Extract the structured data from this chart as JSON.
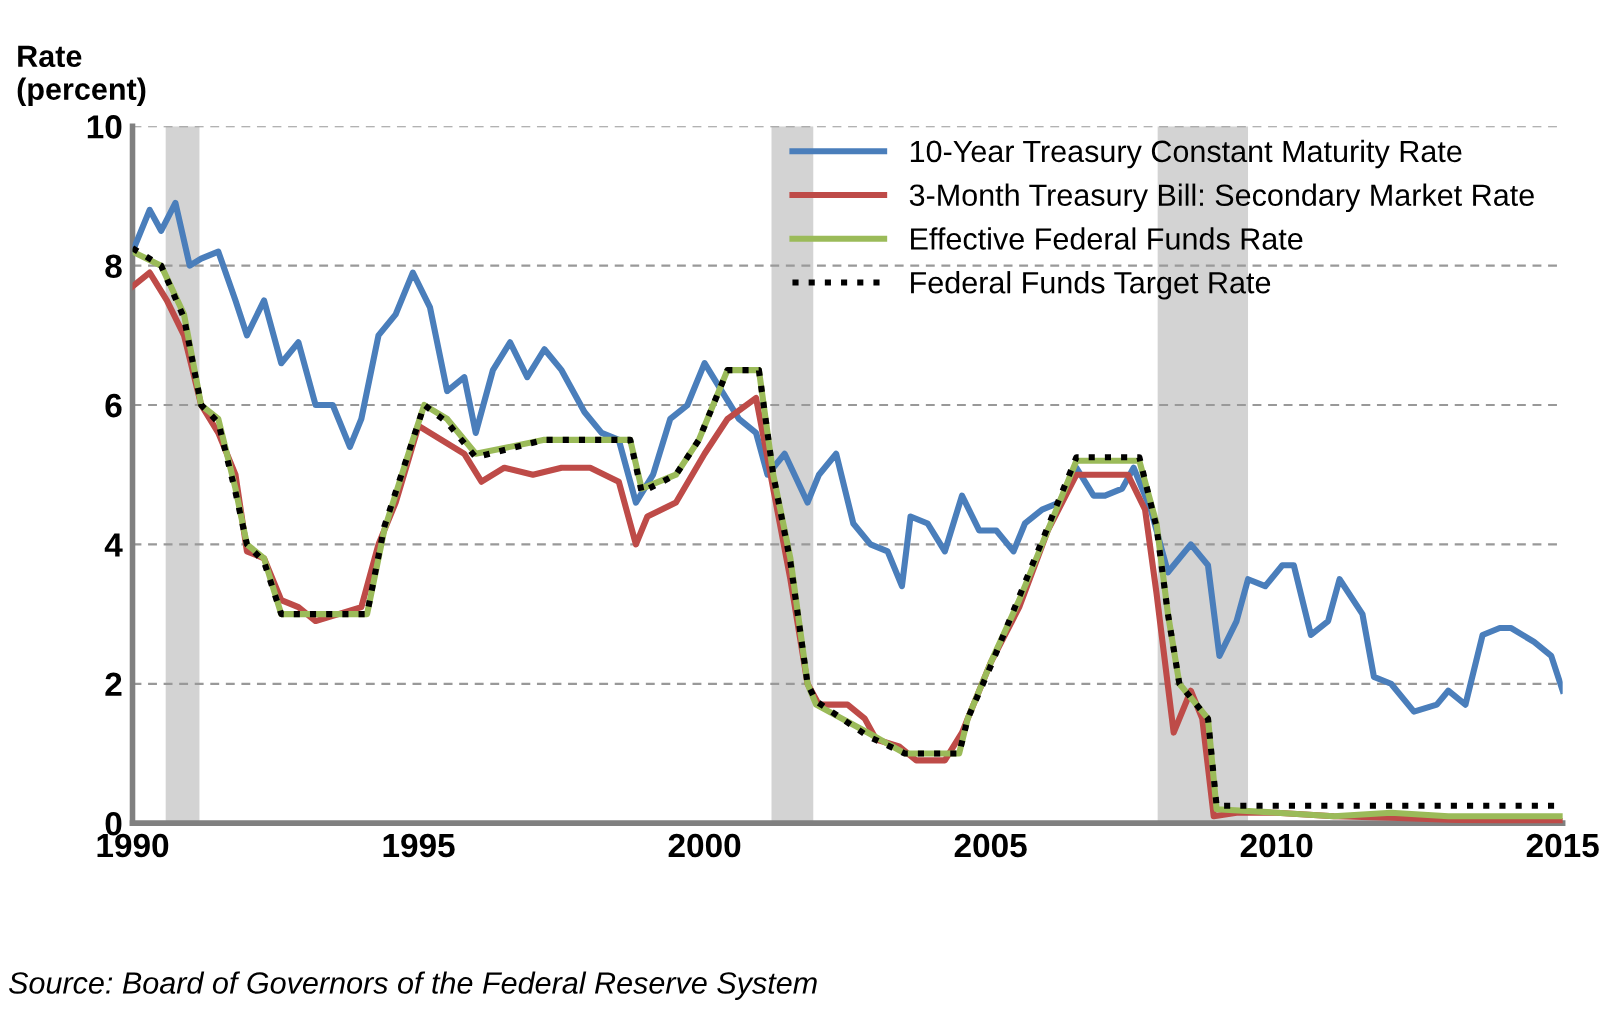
{
  "chart_data": {
    "type": "line",
    "ylabel": "Rate\n(percent)",
    "xlim": [
      1990,
      2015
    ],
    "xticks": [
      1990,
      1995,
      2000,
      2005,
      2010,
      2015
    ],
    "ylim": [
      0,
      10
    ],
    "yticks": [
      0,
      2,
      4,
      6,
      8,
      10
    ],
    "grid": "y",
    "legend": "top right",
    "bands": [
      {
        "axis": "x",
        "from": 1990.58,
        "to": 1991.17,
        "color": "#d3d3d3"
      },
      {
        "axis": "x",
        "from": 2001.17,
        "to": 2001.9,
        "color": "#d3d3d3"
      },
      {
        "axis": "x",
        "from": 2007.92,
        "to": 2009.5,
        "color": "#d3d3d3"
      }
    ],
    "series": [
      {
        "name": "10-Year Treasury Constant Maturity Rate",
        "color": "#4a7ebb",
        "line_style": "solid",
        "x": [
          1990.0,
          1990.3,
          1990.5,
          1990.75,
          1991.0,
          1991.2,
          1991.5,
          1991.8,
          1992.0,
          1992.3,
          1992.6,
          1992.9,
          1993.2,
          1993.5,
          1993.8,
          1994.0,
          1994.3,
          1994.6,
          1994.9,
          1995.2,
          1995.5,
          1995.8,
          1996.0,
          1996.3,
          1996.6,
          1996.9,
          1997.2,
          1997.5,
          1997.9,
          1998.2,
          1998.5,
          1998.8,
          1999.1,
          1999.4,
          1999.7,
          2000.0,
          2000.3,
          2000.6,
          2000.9,
          2001.1,
          2001.4,
          2001.8,
          2002.0,
          2002.3,
          2002.6,
          2002.9,
          2003.2,
          2003.45,
          2003.6,
          2003.9,
          2004.2,
          2004.5,
          2004.8,
          2005.1,
          2005.4,
          2005.6,
          2005.9,
          2006.2,
          2006.5,
          2006.8,
          2007.0,
          2007.3,
          2007.5,
          2007.8,
          2008.1,
          2008.5,
          2008.8,
          2009.0,
          2009.3,
          2009.5,
          2009.8,
          2010.1,
          2010.3,
          2010.6,
          2010.9,
          2011.1,
          2011.5,
          2011.7,
          2012.0,
          2012.4,
          2012.8,
          2013.0,
          2013.3,
          2013.6,
          2013.9,
          2014.1,
          2014.5,
          2014.8,
          2015.0
        ],
        "values": [
          8.2,
          8.8,
          8.5,
          8.9,
          8.0,
          8.1,
          8.2,
          7.5,
          7.0,
          7.5,
          6.6,
          6.9,
          6.0,
          6.0,
          5.4,
          5.8,
          7.0,
          7.3,
          7.9,
          7.4,
          6.2,
          6.4,
          5.6,
          6.5,
          6.9,
          6.4,
          6.8,
          6.5,
          5.9,
          5.6,
          5.5,
          4.6,
          5.0,
          5.8,
          6.0,
          6.6,
          6.2,
          5.8,
          5.6,
          5.0,
          5.3,
          4.6,
          5.0,
          5.3,
          4.3,
          4.0,
          3.9,
          3.4,
          4.4,
          4.3,
          3.9,
          4.7,
          4.2,
          4.2,
          3.9,
          4.3,
          4.5,
          4.6,
          5.1,
          4.7,
          4.7,
          4.8,
          5.1,
          4.5,
          3.6,
          4.0,
          3.7,
          2.4,
          2.9,
          3.5,
          3.4,
          3.7,
          3.7,
          2.7,
          2.9,
          3.5,
          3.0,
          2.1,
          2.0,
          1.6,
          1.7,
          1.9,
          1.7,
          2.7,
          2.8,
          2.8,
          2.6,
          2.4,
          1.9
        ]
      },
      {
        "name": "3-Month Treasury Bill: Secondary Market Rate",
        "color": "#be4b48",
        "line_style": "solid",
        "x": [
          1990.0,
          1990.3,
          1990.6,
          1990.9,
          1991.2,
          1991.5,
          1991.8,
          1992.0,
          1992.3,
          1992.6,
          1992.9,
          1993.2,
          1993.6,
          1994.0,
          1994.3,
          1994.6,
          1995.0,
          1995.4,
          1995.8,
          1996.1,
          1996.5,
          1997.0,
          1997.5,
          1998.0,
          1998.5,
          1998.8,
          1999.0,
          1999.5,
          2000.0,
          2000.4,
          2000.9,
          2001.2,
          2001.5,
          2001.8,
          2002.0,
          2002.5,
          2002.8,
          2003.0,
          2003.4,
          2003.7,
          2004.2,
          2004.5,
          2005.0,
          2005.5,
          2006.0,
          2006.5,
          2007.0,
          2007.4,
          2007.7,
          2007.9,
          2008.2,
          2008.5,
          2008.7,
          2008.9,
          2009.3,
          2010.0,
          2011.0,
          2012.0,
          2013.0,
          2014.0,
          2015.0
        ],
        "values": [
          7.7,
          7.9,
          7.5,
          7.0,
          6.0,
          5.6,
          5.0,
          3.9,
          3.8,
          3.2,
          3.1,
          2.9,
          3.0,
          3.1,
          4.0,
          4.6,
          5.7,
          5.5,
          5.3,
          4.9,
          5.1,
          5.0,
          5.1,
          5.1,
          4.9,
          4.0,
          4.4,
          4.6,
          5.3,
          5.8,
          6.1,
          4.8,
          3.5,
          2.0,
          1.7,
          1.7,
          1.5,
          1.2,
          1.1,
          0.9,
          0.9,
          1.3,
          2.3,
          3.1,
          4.2,
          5.0,
          5.0,
          5.0,
          4.5,
          3.3,
          1.3,
          1.9,
          1.5,
          0.1,
          0.15,
          0.15,
          0.1,
          0.08,
          0.05,
          0.03,
          0.03
        ]
      },
      {
        "name": "Effective Federal Funds Rate",
        "color": "#9bbb59",
        "line_style": "solid",
        "x": [
          1990.0,
          1990.5,
          1990.9,
          1991.2,
          1991.5,
          1991.8,
          1992.0,
          1992.3,
          1992.6,
          1994.1,
          1994.4,
          1994.9,
          1995.1,
          1995.5,
          1996.0,
          1997.2,
          1998.7,
          1998.9,
          1999.5,
          1999.9,
          2000.4,
          2000.95,
          2001.2,
          2001.5,
          2001.8,
          2001.95,
          2002.85,
          2003.5,
          2004.45,
          2004.6,
          2005.0,
          2005.5,
          2006.0,
          2006.5,
          2007.6,
          2007.9,
          2008.1,
          2008.3,
          2008.8,
          2008.95,
          2010.0,
          2011.0,
          2012.0,
          2013.0,
          2014.0,
          2015.0
        ],
        "values": [
          8.2,
          8.0,
          7.3,
          6.0,
          5.8,
          4.8,
          4.0,
          3.8,
          3.0,
          3.0,
          4.2,
          5.5,
          6.0,
          5.8,
          5.3,
          5.5,
          5.5,
          4.8,
          5.0,
          5.5,
          6.5,
          6.5,
          5.0,
          3.8,
          2.0,
          1.7,
          1.3,
          1.0,
          1.0,
          1.5,
          2.3,
          3.2,
          4.2,
          5.2,
          5.2,
          4.3,
          3.0,
          2.0,
          1.5,
          0.2,
          0.15,
          0.1,
          0.15,
          0.1,
          0.1,
          0.1
        ]
      },
      {
        "name": "Federal Funds Target Rate",
        "color": "#000000",
        "line_style": "dotted",
        "x": [
          1990.0,
          1990.5,
          1990.9,
          1991.2,
          1991.5,
          1991.8,
          1992.0,
          1992.3,
          1992.6,
          1994.1,
          1994.4,
          1994.9,
          1995.1,
          1995.5,
          1996.0,
          1997.2,
          1998.7,
          1998.9,
          1999.5,
          1999.9,
          2000.4,
          2000.95,
          2001.2,
          2001.5,
          2001.8,
          2001.95,
          2002.85,
          2003.5,
          2004.45,
          2004.6,
          2005.0,
          2005.5,
          2006.0,
          2006.5,
          2007.6,
          2007.9,
          2008.1,
          2008.3,
          2008.8,
          2008.95,
          2015.0
        ],
        "values": [
          8.25,
          8.0,
          7.25,
          6.0,
          5.75,
          4.75,
          4.0,
          3.75,
          3.0,
          3.0,
          4.25,
          5.5,
          6.0,
          5.75,
          5.25,
          5.5,
          5.5,
          4.75,
          5.0,
          5.5,
          6.5,
          6.5,
          5.0,
          3.75,
          2.0,
          1.75,
          1.25,
          1.0,
          1.0,
          1.5,
          2.25,
          3.25,
          4.25,
          5.25,
          5.25,
          4.25,
          3.0,
          2.0,
          1.5,
          0.25,
          0.25
        ]
      }
    ],
    "annotations": [
      "Source: Board of Governors of the Federal Reserve System"
    ]
  }
}
